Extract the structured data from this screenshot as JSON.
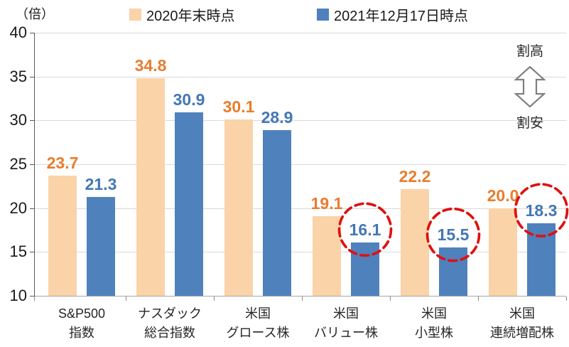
{
  "chart_data": {
    "type": "bar",
    "title": "",
    "unit_label": "（倍）",
    "legend_position": "top",
    "grid": true,
    "ylim": [
      10,
      40
    ],
    "ytick_step": 5,
    "yticks": [
      40,
      35,
      30,
      25,
      20,
      15,
      10
    ],
    "categories": [
      {
        "line1": "S&P500",
        "line2": "指数"
      },
      {
        "line1": "ナスダック",
        "line2": "総合指数"
      },
      {
        "line1": "米国",
        "line2": "グロース株"
      },
      {
        "line1": "米国",
        "line2": "バリュー株"
      },
      {
        "line1": "米国",
        "line2": "小型株"
      },
      {
        "line1": "米国",
        "line2": "連続増配株"
      }
    ],
    "series": [
      {
        "name": "2020年末時点",
        "bar_color": "#fbd3a8",
        "label_color": "#e87d2e",
        "values": [
          23.7,
          34.8,
          30.1,
          19.1,
          22.2,
          20.0
        ]
      },
      {
        "name": "2021年12月17日時点",
        "bar_color": "#4f81bd",
        "label_color": "#4477b4",
        "values": [
          21.3,
          30.9,
          28.9,
          16.1,
          15.5,
          18.3
        ]
      }
    ],
    "highlights": [
      {
        "series": 1,
        "category": 3,
        "value": 16.1
      },
      {
        "series": 1,
        "category": 4,
        "value": 15.5
      },
      {
        "series": 1,
        "category": 5,
        "value": 18.3
      }
    ],
    "highlight_color": "#e01010",
    "axis_colors": {
      "gridline": "#d9d9d9",
      "y_axis": "#595959",
      "x_axis": "#a6a6a6"
    },
    "annotation": {
      "top_label": "割高",
      "bottom_label": "割安"
    }
  }
}
